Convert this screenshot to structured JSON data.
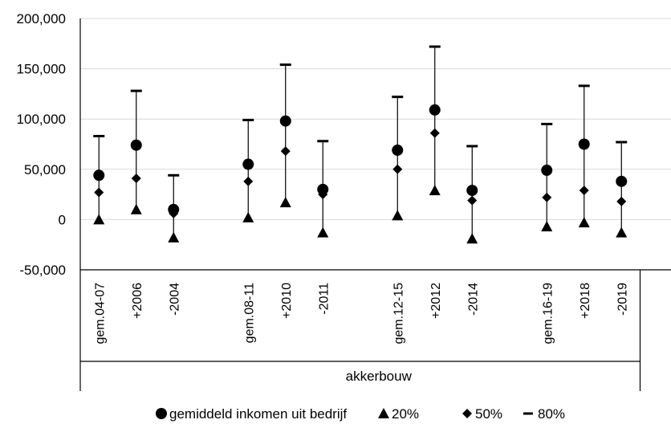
{
  "chart_data": {
    "type": "scatter",
    "title": "",
    "xlabel": "",
    "ylabel": "",
    "ylim": [
      -50000,
      200000
    ],
    "yticks": [
      -50000,
      0,
      50000,
      100000,
      150000,
      200000
    ],
    "ytick_labels": [
      "-50,000",
      "0",
      "50,000",
      "100,000",
      "150,000",
      "200,000"
    ],
    "grid": "horizontal",
    "legend_position": "bottom",
    "group_label": "akkerbouw",
    "categories": [
      "gem.04-07",
      "+2006",
      "-2004",
      "",
      "gem.08-11",
      "+2010",
      "-2011",
      "",
      "gem.12-15",
      "+2012",
      "-2014",
      "",
      "gem.16-19",
      "+2018",
      "-2019",
      ""
    ],
    "series": [
      {
        "name": "gemiddeld inkomen uit bedrijf",
        "marker": "circle",
        "values": [
          44000,
          74000,
          10000,
          null,
          55000,
          98000,
          30000,
          null,
          69000,
          109000,
          29000,
          null,
          49000,
          75000,
          38000,
          null
        ]
      },
      {
        "name": "20%",
        "marker": "triangle",
        "values": [
          0,
          10000,
          -18000,
          null,
          2000,
          17000,
          -13000,
          null,
          4000,
          29000,
          -19000,
          null,
          -7000,
          -3000,
          -13000,
          null
        ]
      },
      {
        "name": "50%",
        "marker": "diamond",
        "values": [
          27000,
          41000,
          6000,
          null,
          38000,
          68000,
          25000,
          null,
          50000,
          86000,
          19000,
          null,
          22000,
          29000,
          18000,
          null
        ]
      },
      {
        "name": "80%",
        "marker": "dash",
        "values": [
          83000,
          128000,
          44000,
          null,
          99000,
          154000,
          78000,
          null,
          122000,
          172000,
          73000,
          null,
          95000,
          133000,
          77000,
          null
        ]
      }
    ]
  }
}
